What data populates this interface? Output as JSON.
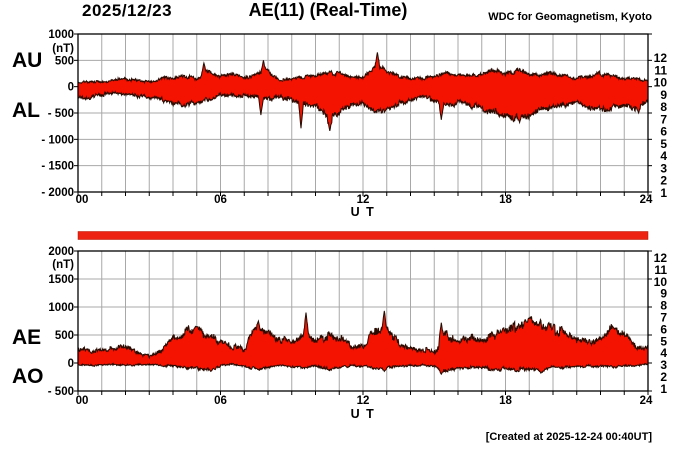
{
  "header": {
    "date": "2025/12/23",
    "title": "AE(11) (Real-Time)",
    "org": "WDC for Geomagnetism, Kyoto"
  },
  "footer": {
    "created": "[Created at 2025-12-24 00:40UT]"
  },
  "stations": {
    "numbers": [
      "12",
      "11",
      "10",
      "9",
      "8",
      "7",
      "6",
      "5",
      "4",
      "3",
      "2",
      "1"
    ],
    "colors": [
      "#ee1166",
      "#ee2200",
      "#ff8800",
      "#ffee00",
      "#88ee00",
      "#00ccdd",
      "#2266ff",
      "#5522ee",
      "#ee00ee",
      "#111111",
      "#999999",
      "#cccccc"
    ]
  },
  "style": {
    "fill": "#f31300",
    "edge": "#2b0a00",
    "grid": "#a8a8a8",
    "frame": "#000000",
    "bar": "#ee2211",
    "background": "#ffffff"
  },
  "chart_data": [
    {
      "type": "area",
      "xlabel": "U T",
      "ylabel": "(nT)",
      "xlim": [
        0,
        24
      ],
      "ylim": [
        -2000,
        1000
      ],
      "grid": true,
      "x_tick_values": [
        0,
        6,
        12,
        18,
        24
      ],
      "x_tick_labels": [
        "00",
        "06",
        "12",
        "18",
        "24"
      ],
      "y_tick_values": [
        1000,
        500,
        0,
        -500,
        -1000,
        -1500,
        -2000
      ],
      "y_tick_labels": [
        "1000",
        "500",
        "0",
        "- 500",
        "- 1000",
        "- 1500",
        "- 2000"
      ],
      "x": [
        0,
        0.5,
        1,
        1.5,
        2,
        2.5,
        3,
        3.5,
        4,
        4.5,
        5,
        5.5,
        6,
        6.5,
        7,
        7.5,
        8,
        8.5,
        9,
        9.5,
        10,
        10.5,
        11,
        11.5,
        12,
        12.5,
        13,
        13.5,
        14,
        14.5,
        15,
        15.5,
        16,
        16.5,
        17,
        17.5,
        18,
        18.5,
        19,
        19.5,
        20,
        20.5,
        21,
        21.5,
        22,
        22.5,
        23,
        23.5,
        24
      ],
      "series": [
        {
          "name": "AU",
          "values": [
            80,
            100,
            100,
            120,
            150,
            120,
            100,
            150,
            180,
            200,
            150,
            300,
            200,
            250,
            150,
            250,
            300,
            120,
            150,
            180,
            200,
            250,
            250,
            200,
            150,
            400,
            300,
            200,
            150,
            150,
            200,
            250,
            200,
            200,
            250,
            300,
            250,
            300,
            250,
            200,
            250,
            200,
            150,
            200,
            250,
            200,
            150,
            150,
            100
          ],
          "noise": [
            18,
            0.12
          ],
          "spikes": [
            [
              5.3,
              450
            ],
            [
              7.8,
              500
            ],
            [
              12.6,
              650
            ]
          ]
        },
        {
          "name": "AL",
          "values": [
            -200,
            -220,
            -150,
            -120,
            -150,
            -180,
            -200,
            -250,
            -300,
            -360,
            -300,
            -250,
            -150,
            -150,
            -180,
            -200,
            -250,
            -200,
            -250,
            -300,
            -350,
            -600,
            -500,
            -350,
            -300,
            -450,
            -400,
            -300,
            -250,
            -200,
            -250,
            -350,
            -300,
            -350,
            -400,
            -500,
            -550,
            -600,
            -550,
            -450,
            -400,
            -350,
            -300,
            -400,
            -450,
            -400,
            -350,
            -400,
            -300
          ],
          "noise": [
            22,
            0.13
          ],
          "spikes": [
            [
              7.7,
              -540
            ],
            [
              9.4,
              -790
            ],
            [
              10.6,
              -840
            ],
            [
              15.3,
              -630
            ],
            [
              18.6,
              -680
            ],
            [
              23.6,
              -500
            ]
          ]
        }
      ]
    },
    {
      "type": "area",
      "xlabel": "U T",
      "ylabel": "(nT)",
      "xlim": [
        0,
        24
      ],
      "ylim": [
        -500,
        2000
      ],
      "grid": true,
      "x_tick_values": [
        0,
        6,
        12,
        18,
        24
      ],
      "x_tick_labels": [
        "00",
        "06",
        "12",
        "18",
        "24"
      ],
      "y_tick_values": [
        2000,
        1500,
        1000,
        500,
        0,
        -500
      ],
      "y_tick_labels": [
        "2000",
        "1500",
        "1000",
        "500",
        "0",
        "- 500"
      ],
      "x": [
        0,
        0.5,
        1,
        1.5,
        2,
        2.5,
        3,
        3.5,
        4,
        4.5,
        5,
        5.5,
        6,
        6.5,
        7,
        7.5,
        8,
        8.5,
        9,
        9.5,
        10,
        10.5,
        11,
        11.5,
        12,
        12.5,
        13,
        13.5,
        14,
        14.5,
        15,
        15.5,
        16,
        16.5,
        17,
        17.5,
        18,
        18.5,
        19,
        19.5,
        20,
        20.5,
        21,
        21.5,
        22,
        22.5,
        23,
        23.5,
        24
      ],
      "series": [
        {
          "name": "AE",
          "values": [
            280,
            200,
            250,
            250,
            300,
            200,
            120,
            200,
            450,
            550,
            600,
            500,
            350,
            300,
            250,
            650,
            550,
            450,
            350,
            500,
            350,
            500,
            450,
            300,
            300,
            600,
            650,
            350,
            250,
            250,
            200,
            500,
            400,
            450,
            400,
            500,
            550,
            700,
            750,
            650,
            600,
            550,
            400,
            350,
            450,
            600,
            500,
            300,
            250
          ],
          "noise": [
            25,
            0.13
          ],
          "spikes": [
            [
              5.0,
              650
            ],
            [
              7.6,
              750
            ],
            [
              9.6,
              900
            ],
            [
              12.9,
              930
            ],
            [
              15.3,
              720
            ],
            [
              19.0,
              800
            ],
            [
              22.6,
              620
            ]
          ]
        },
        {
          "name": "AO",
          "values": [
            -30,
            -50,
            -40,
            -30,
            -50,
            -30,
            -20,
            -40,
            -60,
            -80,
            -100,
            -120,
            -50,
            -30,
            -50,
            -100,
            -80,
            -50,
            -60,
            -80,
            -50,
            -100,
            -80,
            -50,
            -60,
            -80,
            -100,
            -60,
            -50,
            -40,
            -50,
            -150,
            -80,
            -70,
            -80,
            -120,
            -100,
            -120,
            -100,
            -120,
            -80,
            -70,
            -60,
            -50,
            -60,
            -70,
            -50,
            -40,
            -30
          ],
          "noise": [
            12,
            0.25
          ],
          "spikes": [
            [
              5.6,
              -150
            ],
            [
              12.9,
              -150
            ],
            [
              15.3,
              -200
            ],
            [
              19.5,
              -180
            ]
          ]
        }
      ]
    }
  ]
}
